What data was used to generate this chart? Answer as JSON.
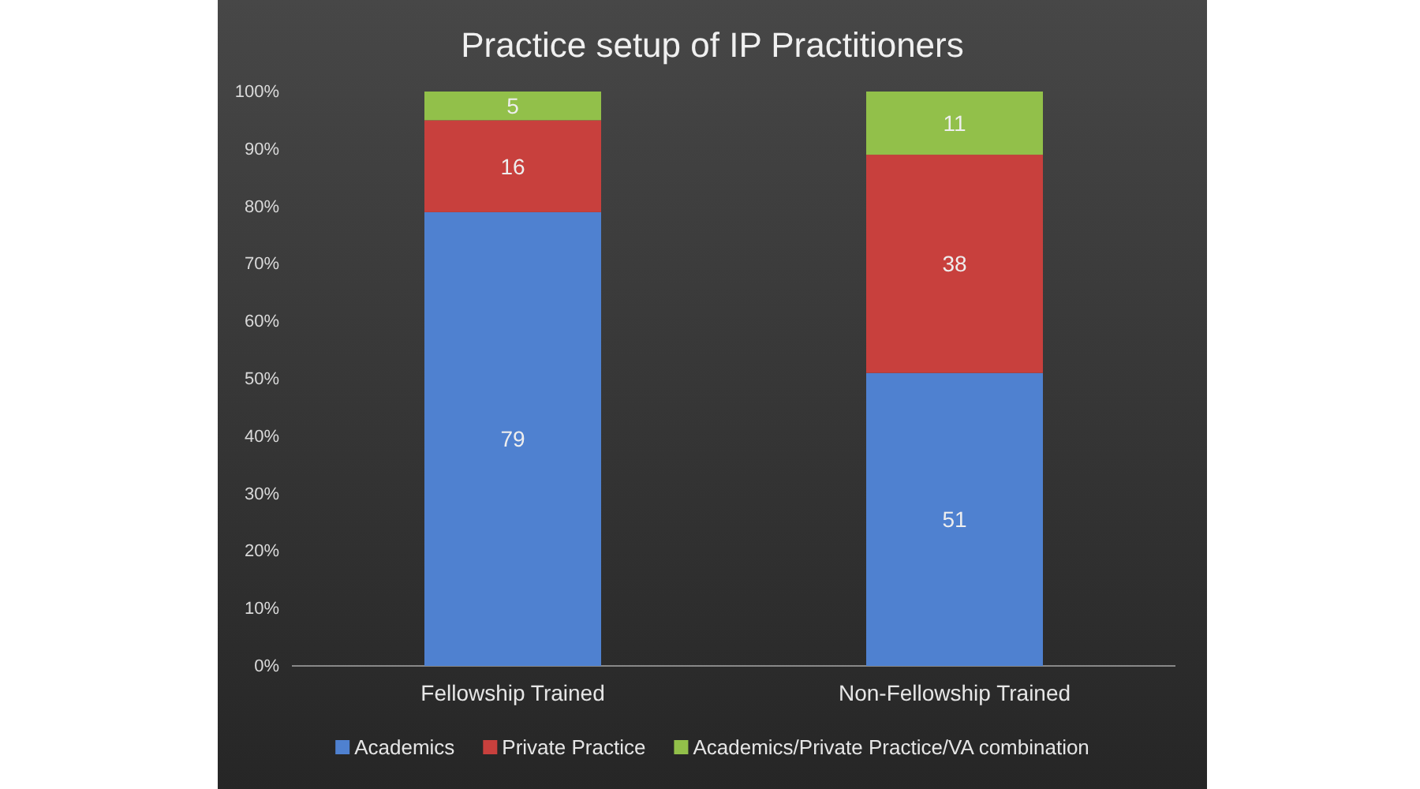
{
  "chart_data": {
    "type": "bar",
    "title": "Practice setup of IP Practitioners",
    "categories": [
      "Fellowship Trained",
      "Non-Fellowship Trained"
    ],
    "stacked": true,
    "data_labels": true,
    "legend": "bottom",
    "grid": false,
    "ylim": [
      0,
      100
    ],
    "yticks": [
      {
        "value": 0,
        "label": "0%"
      },
      {
        "value": 10,
        "label": "10%"
      },
      {
        "value": 20,
        "label": "20%"
      },
      {
        "value": 30,
        "label": "30%"
      },
      {
        "value": 40,
        "label": "40%"
      },
      {
        "value": 50,
        "label": "50%"
      },
      {
        "value": 60,
        "label": "60%"
      },
      {
        "value": 70,
        "label": "70%"
      },
      {
        "value": 80,
        "label": "80%"
      },
      {
        "value": 90,
        "label": "90%"
      },
      {
        "value": 100,
        "label": "100%"
      }
    ],
    "series": [
      {
        "name": "Academics",
        "color": "#4f81d0",
        "values": [
          79,
          51
        ]
      },
      {
        "name": "Private Practice",
        "color": "#c8403d",
        "values": [
          16,
          38
        ]
      },
      {
        "name": "Academics/Private Practice/VA combination",
        "color": "#92c04a",
        "values": [
          5,
          11
        ]
      }
    ]
  }
}
